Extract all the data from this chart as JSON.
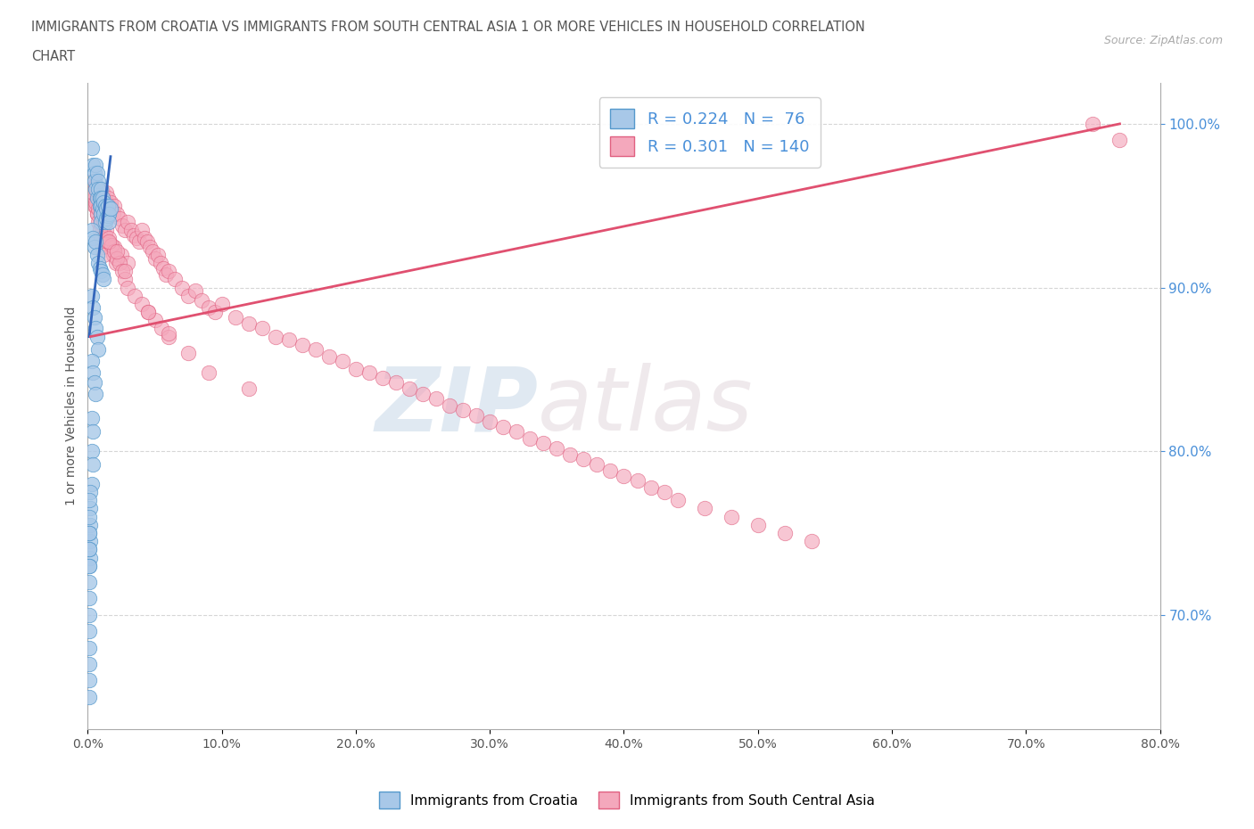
{
  "title_line1": "IMMIGRANTS FROM CROATIA VS IMMIGRANTS FROM SOUTH CENTRAL ASIA 1 OR MORE VEHICLES IN HOUSEHOLD CORRELATION",
  "title_line2": "CHART",
  "source": "Source: ZipAtlas.com",
  "ylabel": "1 or more Vehicles in Household",
  "xlim": [
    0.0,
    0.8
  ],
  "ylim": [
    0.63,
    1.025
  ],
  "xtick_labels": [
    "0.0%",
    "10.0%",
    "20.0%",
    "30.0%",
    "40.0%",
    "50.0%",
    "60.0%",
    "70.0%",
    "80.0%"
  ],
  "xtick_vals": [
    0.0,
    0.1,
    0.2,
    0.3,
    0.4,
    0.5,
    0.6,
    0.7,
    0.8
  ],
  "ytick_labels": [
    "70.0%",
    "80.0%",
    "90.0%",
    "100.0%"
  ],
  "ytick_vals": [
    0.7,
    0.8,
    0.9,
    1.0
  ],
  "color_croatia": "#a8c8e8",
  "color_sca": "#f4a8bc",
  "edge_color_croatia": "#5599cc",
  "edge_color_sca": "#e06080",
  "line_color_croatia": "#3366bb",
  "line_color_sca": "#e05070",
  "R_croatia": 0.224,
  "N_croatia": 76,
  "R_sca": 0.301,
  "N_sca": 140,
  "watermark_zip": "ZIP",
  "watermark_atlas": "atlas",
  "legend_label_croatia": "Immigrants from Croatia",
  "legend_label_sca": "Immigrants from South Central Asia",
  "croatia_x": [
    0.003,
    0.004,
    0.005,
    0.005,
    0.006,
    0.006,
    0.007,
    0.007,
    0.008,
    0.008,
    0.009,
    0.009,
    0.01,
    0.01,
    0.01,
    0.01,
    0.01,
    0.011,
    0.011,
    0.012,
    0.012,
    0.013,
    0.013,
    0.014,
    0.014,
    0.015,
    0.015,
    0.016,
    0.016,
    0.017,
    0.003,
    0.004,
    0.005,
    0.006,
    0.007,
    0.008,
    0.009,
    0.01,
    0.011,
    0.012,
    0.003,
    0.004,
    0.005,
    0.006,
    0.007,
    0.008,
    0.003,
    0.004,
    0.005,
    0.006,
    0.003,
    0.004,
    0.003,
    0.004,
    0.003,
    0.002,
    0.002,
    0.002,
    0.002,
    0.002,
    0.001,
    0.001,
    0.001,
    0.001,
    0.001,
    0.001,
    0.001,
    0.001,
    0.001,
    0.001,
    0.001,
    0.001,
    0.001,
    0.001,
    0.001,
    0.001
  ],
  "croatia_y": [
    0.985,
    0.975,
    0.97,
    0.965,
    0.975,
    0.96,
    0.97,
    0.955,
    0.965,
    0.96,
    0.955,
    0.95,
    0.96,
    0.955,
    0.95,
    0.945,
    0.94,
    0.955,
    0.948,
    0.952,
    0.945,
    0.95,
    0.94,
    0.948,
    0.942,
    0.95,
    0.944,
    0.945,
    0.94,
    0.948,
    0.935,
    0.93,
    0.925,
    0.928,
    0.92,
    0.915,
    0.912,
    0.91,
    0.908,
    0.905,
    0.895,
    0.888,
    0.882,
    0.875,
    0.87,
    0.862,
    0.855,
    0.848,
    0.842,
    0.835,
    0.82,
    0.812,
    0.8,
    0.792,
    0.78,
    0.775,
    0.765,
    0.755,
    0.745,
    0.735,
    0.77,
    0.76,
    0.75,
    0.74,
    0.73,
    0.72,
    0.71,
    0.7,
    0.69,
    0.68,
    0.67,
    0.66,
    0.65,
    0.75,
    0.74,
    0.73
  ],
  "sca_x": [
    0.002,
    0.003,
    0.004,
    0.005,
    0.006,
    0.007,
    0.008,
    0.009,
    0.01,
    0.011,
    0.012,
    0.013,
    0.014,
    0.015,
    0.016,
    0.017,
    0.018,
    0.019,
    0.02,
    0.022,
    0.024,
    0.026,
    0.028,
    0.03,
    0.032,
    0.034,
    0.036,
    0.038,
    0.04,
    0.042,
    0.044,
    0.046,
    0.048,
    0.05,
    0.052,
    0.054,
    0.056,
    0.058,
    0.06,
    0.065,
    0.07,
    0.075,
    0.08,
    0.085,
    0.09,
    0.095,
    0.1,
    0.11,
    0.12,
    0.13,
    0.14,
    0.15,
    0.16,
    0.17,
    0.18,
    0.19,
    0.2,
    0.21,
    0.22,
    0.23,
    0.24,
    0.25,
    0.26,
    0.27,
    0.28,
    0.29,
    0.3,
    0.31,
    0.32,
    0.33,
    0.34,
    0.35,
    0.36,
    0.37,
    0.38,
    0.39,
    0.4,
    0.41,
    0.42,
    0.43,
    0.44,
    0.46,
    0.48,
    0.5,
    0.52,
    0.54,
    0.003,
    0.005,
    0.007,
    0.009,
    0.011,
    0.013,
    0.015,
    0.017,
    0.019,
    0.021,
    0.003,
    0.004,
    0.005,
    0.006,
    0.007,
    0.008,
    0.009,
    0.01,
    0.011,
    0.012,
    0.015,
    0.02,
    0.025,
    0.03,
    0.004,
    0.006,
    0.008,
    0.01,
    0.012,
    0.014,
    0.016,
    0.018,
    0.02,
    0.022,
    0.024,
    0.026,
    0.028,
    0.03,
    0.035,
    0.04,
    0.045,
    0.05,
    0.055,
    0.06,
    0.75,
    0.77,
    0.016,
    0.022,
    0.028,
    0.045,
    0.06,
    0.075,
    0.09,
    0.12
  ],
  "sca_y": [
    0.96,
    0.958,
    0.965,
    0.955,
    0.963,
    0.958,
    0.956,
    0.952,
    0.96,
    0.958,
    0.955,
    0.952,
    0.958,
    0.955,
    0.95,
    0.952,
    0.948,
    0.945,
    0.95,
    0.945,
    0.942,
    0.938,
    0.935,
    0.94,
    0.935,
    0.932,
    0.93,
    0.928,
    0.935,
    0.93,
    0.928,
    0.925,
    0.922,
    0.918,
    0.92,
    0.915,
    0.912,
    0.908,
    0.91,
    0.905,
    0.9,
    0.895,
    0.898,
    0.892,
    0.888,
    0.885,
    0.89,
    0.882,
    0.878,
    0.875,
    0.87,
    0.868,
    0.865,
    0.862,
    0.858,
    0.855,
    0.85,
    0.848,
    0.845,
    0.842,
    0.838,
    0.835,
    0.832,
    0.828,
    0.825,
    0.822,
    0.818,
    0.815,
    0.812,
    0.808,
    0.805,
    0.802,
    0.798,
    0.795,
    0.792,
    0.788,
    0.785,
    0.782,
    0.778,
    0.775,
    0.77,
    0.765,
    0.76,
    0.755,
    0.75,
    0.745,
    0.955,
    0.95,
    0.945,
    0.94,
    0.935,
    0.932,
    0.928,
    0.925,
    0.92,
    0.915,
    0.96,
    0.958,
    0.955,
    0.95,
    0.945,
    0.94,
    0.935,
    0.93,
    0.925,
    0.92,
    0.928,
    0.925,
    0.92,
    0.915,
    0.958,
    0.952,
    0.948,
    0.945,
    0.94,
    0.935,
    0.93,
    0.926,
    0.922,
    0.918,
    0.915,
    0.91,
    0.905,
    0.9,
    0.895,
    0.89,
    0.885,
    0.88,
    0.875,
    0.87,
    1.0,
    0.99,
    0.928,
    0.922,
    0.91,
    0.885,
    0.872,
    0.86,
    0.848,
    0.838
  ],
  "croatia_trend_x": [
    0.001,
    0.017
  ],
  "croatia_trend_y": [
    0.87,
    0.98
  ],
  "sca_trend_x": [
    0.002,
    0.77
  ],
  "sca_trend_y": [
    0.87,
    1.0
  ]
}
